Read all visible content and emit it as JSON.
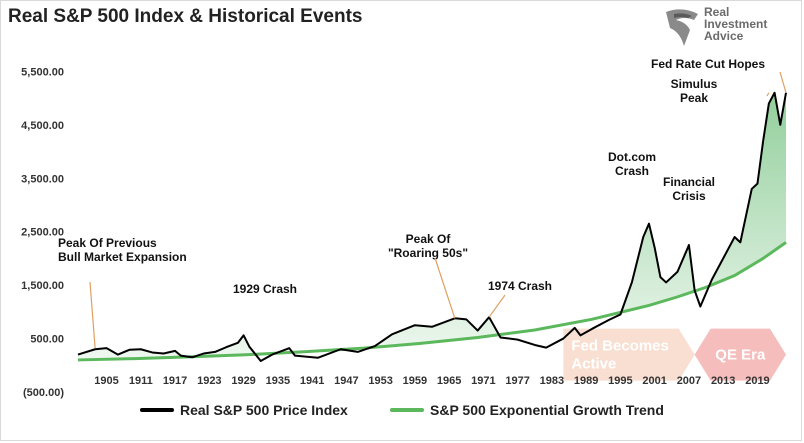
{
  "title": "Real S&P 500 Index & Historical Events",
  "logo": {
    "line1": "Real",
    "line2": "Investment",
    "line3": "Advice",
    "icon": "eagle-head-icon"
  },
  "colors": {
    "price": "#000000",
    "trend": "#5cb85c",
    "fill": "#4caf50",
    "fed_arrow": "#f8d9c9",
    "fed_text": "#ffffff",
    "qe_arrow": "#f4b1b1",
    "qe_text": "#ffffff"
  },
  "legend": [
    {
      "label": "Real S&P 500 Price Index",
      "color": "#000000"
    },
    {
      "label": "S&P 500 Exponential Growth Trend",
      "color": "#5cb85c"
    }
  ],
  "chart_data": {
    "type": "line",
    "title": "Real S&P 500 Index & Historical Events",
    "xlabel": "",
    "ylabel": "",
    "xlim": [
      1900,
      2024
    ],
    "ylim": [
      -500,
      5900
    ],
    "yticks": [
      -500,
      500,
      1500,
      2500,
      3500,
      4500,
      5500
    ],
    "ytick_labels": [
      "(500.00)",
      "500.00",
      "1,500.00",
      "2,500.00",
      "3,500.00",
      "4,500.00",
      "5,500.00"
    ],
    "xticks": [
      1905,
      1911,
      1917,
      1923,
      1929,
      1935,
      1941,
      1947,
      1953,
      1959,
      1965,
      1971,
      1977,
      1983,
      1989,
      1995,
      2001,
      2007,
      2013,
      2019
    ],
    "series": [
      {
        "name": "Real S&P 500 Price Index",
        "x": [
          1900,
          1903,
          1905,
          1907,
          1909,
          1911,
          1913,
          1915,
          1917,
          1918,
          1920,
          1922,
          1924,
          1926,
          1928,
          1929,
          1930,
          1932,
          1934,
          1937,
          1938,
          1942,
          1946,
          1949,
          1952,
          1955,
          1959,
          1962,
          1966,
          1968,
          1970,
          1972,
          1974,
          1977,
          1980,
          1982,
          1985,
          1987,
          1988,
          1990,
          1993,
          1995,
          1997,
          1999,
          2000,
          2001,
          2002,
          2003,
          2005,
          2007,
          2008,
          2009,
          2011,
          2013,
          2015,
          2016,
          2018,
          2019,
          2020,
          2021,
          2022,
          2023,
          2024
        ],
        "y": [
          200,
          300,
          320,
          200,
          290,
          300,
          240,
          220,
          270,
          180,
          150,
          220,
          250,
          340,
          420,
          560,
          350,
          80,
          200,
          320,
          180,
          140,
          300,
          250,
          360,
          580,
          750,
          720,
          880,
          860,
          650,
          900,
          520,
          480,
          380,
          330,
          500,
          700,
          560,
          680,
          850,
          950,
          1550,
          2400,
          2650,
          2200,
          1650,
          1550,
          1750,
          2250,
          1400,
          1100,
          1600,
          2000,
          2400,
          2300,
          3300,
          3400,
          4200,
          4900,
          5100,
          4500,
          5100
        ]
      },
      {
        "name": "S&P 500 Exponential Growth Trend",
        "x": [
          1900,
          1910,
          1920,
          1930,
          1940,
          1950,
          1960,
          1970,
          1980,
          1990,
          2000,
          2005,
          2010,
          2015,
          2020,
          2024
        ],
        "y": [
          100,
          125,
          160,
          200,
          255,
          320,
          410,
          520,
          660,
          860,
          1120,
          1280,
          1460,
          1680,
          2000,
          2300
        ]
      }
    ],
    "annotations": [
      {
        "text": [
          "Peak Of Previous",
          "Bull Market Expansion"
        ],
        "x": 1903,
        "y": 320
      },
      {
        "text": [
          "1929 Crash"
        ],
        "x": 1929,
        "y": 560
      },
      {
        "text": [
          "Peak Of",
          "\"Roaring 50s\""
        ],
        "x": 1966,
        "y": 880
      },
      {
        "text": [
          "1974 Crash"
        ],
        "x": 1972,
        "y": 900
      },
      {
        "text": [
          "Dot.com",
          "Crash"
        ],
        "x": 2000,
        "y": 2650
      },
      {
        "text": [
          "Financial",
          "Crisis"
        ],
        "x": 2008,
        "y": 2250
      },
      {
        "text": [
          "Simulus",
          "Peak"
        ],
        "x": 2021,
        "y": 5100
      },
      {
        "text": [
          "Fed Rate Cut Hopes"
        ],
        "x": 2024,
        "y": 5100
      }
    ],
    "regions": [
      {
        "label": [
          "Fed Becomes",
          "Active"
        ],
        "x_start": 1985,
        "x_end": 2008
      },
      {
        "label": [
          "QE Era"
        ],
        "x_start": 2008,
        "x_end": 2024
      }
    ]
  }
}
